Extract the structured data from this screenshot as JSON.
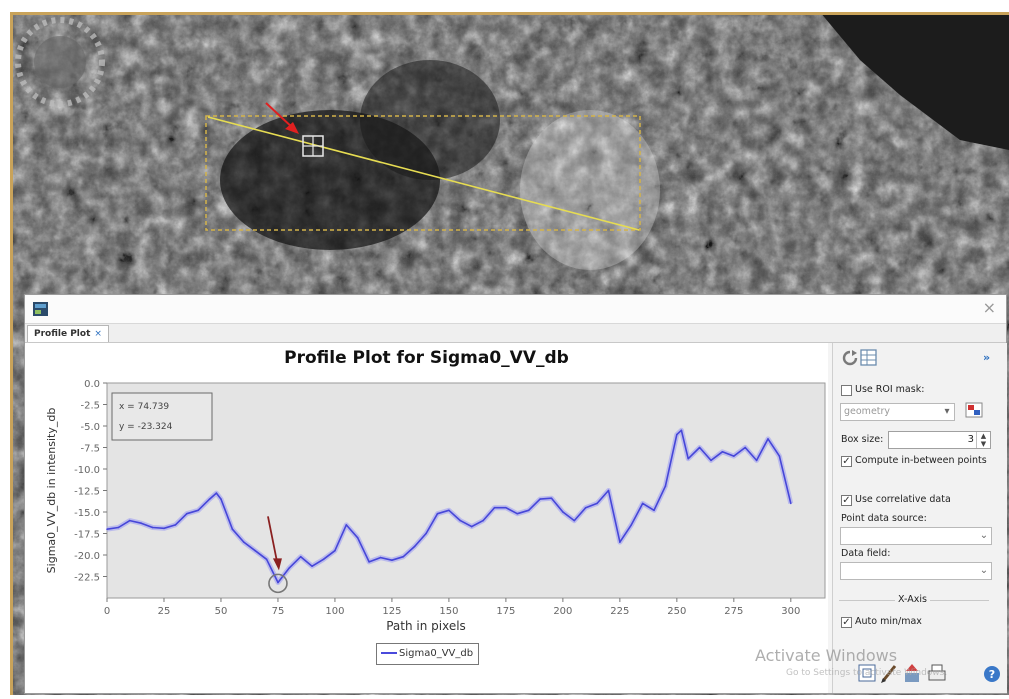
{
  "dialog": {
    "tab_label": "Profile Plot",
    "tab_close": "×",
    "close_glyph": "×"
  },
  "tooltip": {
    "x_text": "x = 74.739",
    "y_text": "y = -23.324"
  },
  "legend": {
    "entry": "Sigma0_VV_db"
  },
  "chart_data": {
    "type": "line",
    "title": "Profile Plot for Sigma0_VV_db",
    "xlabel": "Path in pixels",
    "ylabel": "Sigma0_VV_db in intensity_db",
    "xlim": [
      0,
      315
    ],
    "ylim": [
      -25,
      0
    ],
    "xticks": [
      0,
      25,
      50,
      75,
      100,
      125,
      150,
      175,
      200,
      225,
      250,
      275,
      300
    ],
    "yticks": [
      0.0,
      -2.5,
      -5.0,
      -7.5,
      -10.0,
      -12.5,
      -15.0,
      -17.5,
      -20.0,
      -22.5
    ],
    "ytick_labels": [
      "0.0",
      "-2.5",
      "-5.0",
      "-7.5",
      "-10.0",
      "-12.5",
      "-15.0",
      "-17.5",
      "-20.0",
      "-22.5"
    ],
    "grid": false,
    "legend_position": "bottom-center",
    "line_color": "#4646d8",
    "band_color": "#a9a9ef",
    "series": [
      {
        "name": "Sigma0_VV_db",
        "x": [
          0,
          5,
          10,
          15,
          20,
          25,
          30,
          35,
          40,
          45,
          48,
          50,
          55,
          60,
          65,
          70,
          75,
          80,
          85,
          90,
          95,
          100,
          105,
          110,
          115,
          120,
          125,
          130,
          135,
          140,
          145,
          150,
          155,
          160,
          165,
          170,
          175,
          180,
          185,
          190,
          195,
          200,
          205,
          210,
          215,
          220,
          225,
          230,
          235,
          240,
          245,
          250,
          252,
          255,
          260,
          265,
          270,
          275,
          280,
          285,
          290,
          295,
          300
        ],
        "y": [
          -17,
          -16.8,
          -16,
          -16.3,
          -16.8,
          -16.9,
          -16.5,
          -15.2,
          -14.8,
          -13.5,
          -12.8,
          -13.5,
          -17,
          -18.5,
          -19.5,
          -20.5,
          -23.2,
          -21.5,
          -20.2,
          -21.3,
          -20.5,
          -19.5,
          -16.5,
          -18,
          -20.8,
          -20.3,
          -20.6,
          -20.2,
          -19,
          -17.5,
          -15.2,
          -14.8,
          -16,
          -16.7,
          -16,
          -14.5,
          -14.5,
          -15.2,
          -14.8,
          -13.5,
          -13.4,
          -15,
          -16,
          -14.5,
          -14,
          -12.5,
          -18.5,
          -16.5,
          -14,
          -14.8,
          -12,
          -6,
          -5.5,
          -8.8,
          -7.5,
          -9,
          -8,
          -8.5,
          -7.5,
          -9,
          -6.5,
          -8.5,
          -14
        ]
      }
    ],
    "annotation": {
      "point_x": 75,
      "point_y": -23.3,
      "arrow_color": "#8a2020"
    }
  },
  "panel": {
    "use_roi_mask_label": "Use ROI mask:",
    "use_roi_mask_checked": false,
    "roi_combo_value": "geometry",
    "box_size_label": "Box size:",
    "box_size_value": "3",
    "compute_label": "Compute in-between points",
    "compute_checked": true,
    "correlative_label": "Use correlative data",
    "correlative_checked": true,
    "point_source_label": "Point data source:",
    "data_field_label": "Data field:",
    "xaxis_title": "X-Axis",
    "auto_minmax_label": "Auto min/max",
    "auto_minmax_checked": true,
    "expand_glyph": "»"
  },
  "watermark": {
    "main": "Activate Windows",
    "sub": "Go to Settings to activate Windows."
  }
}
